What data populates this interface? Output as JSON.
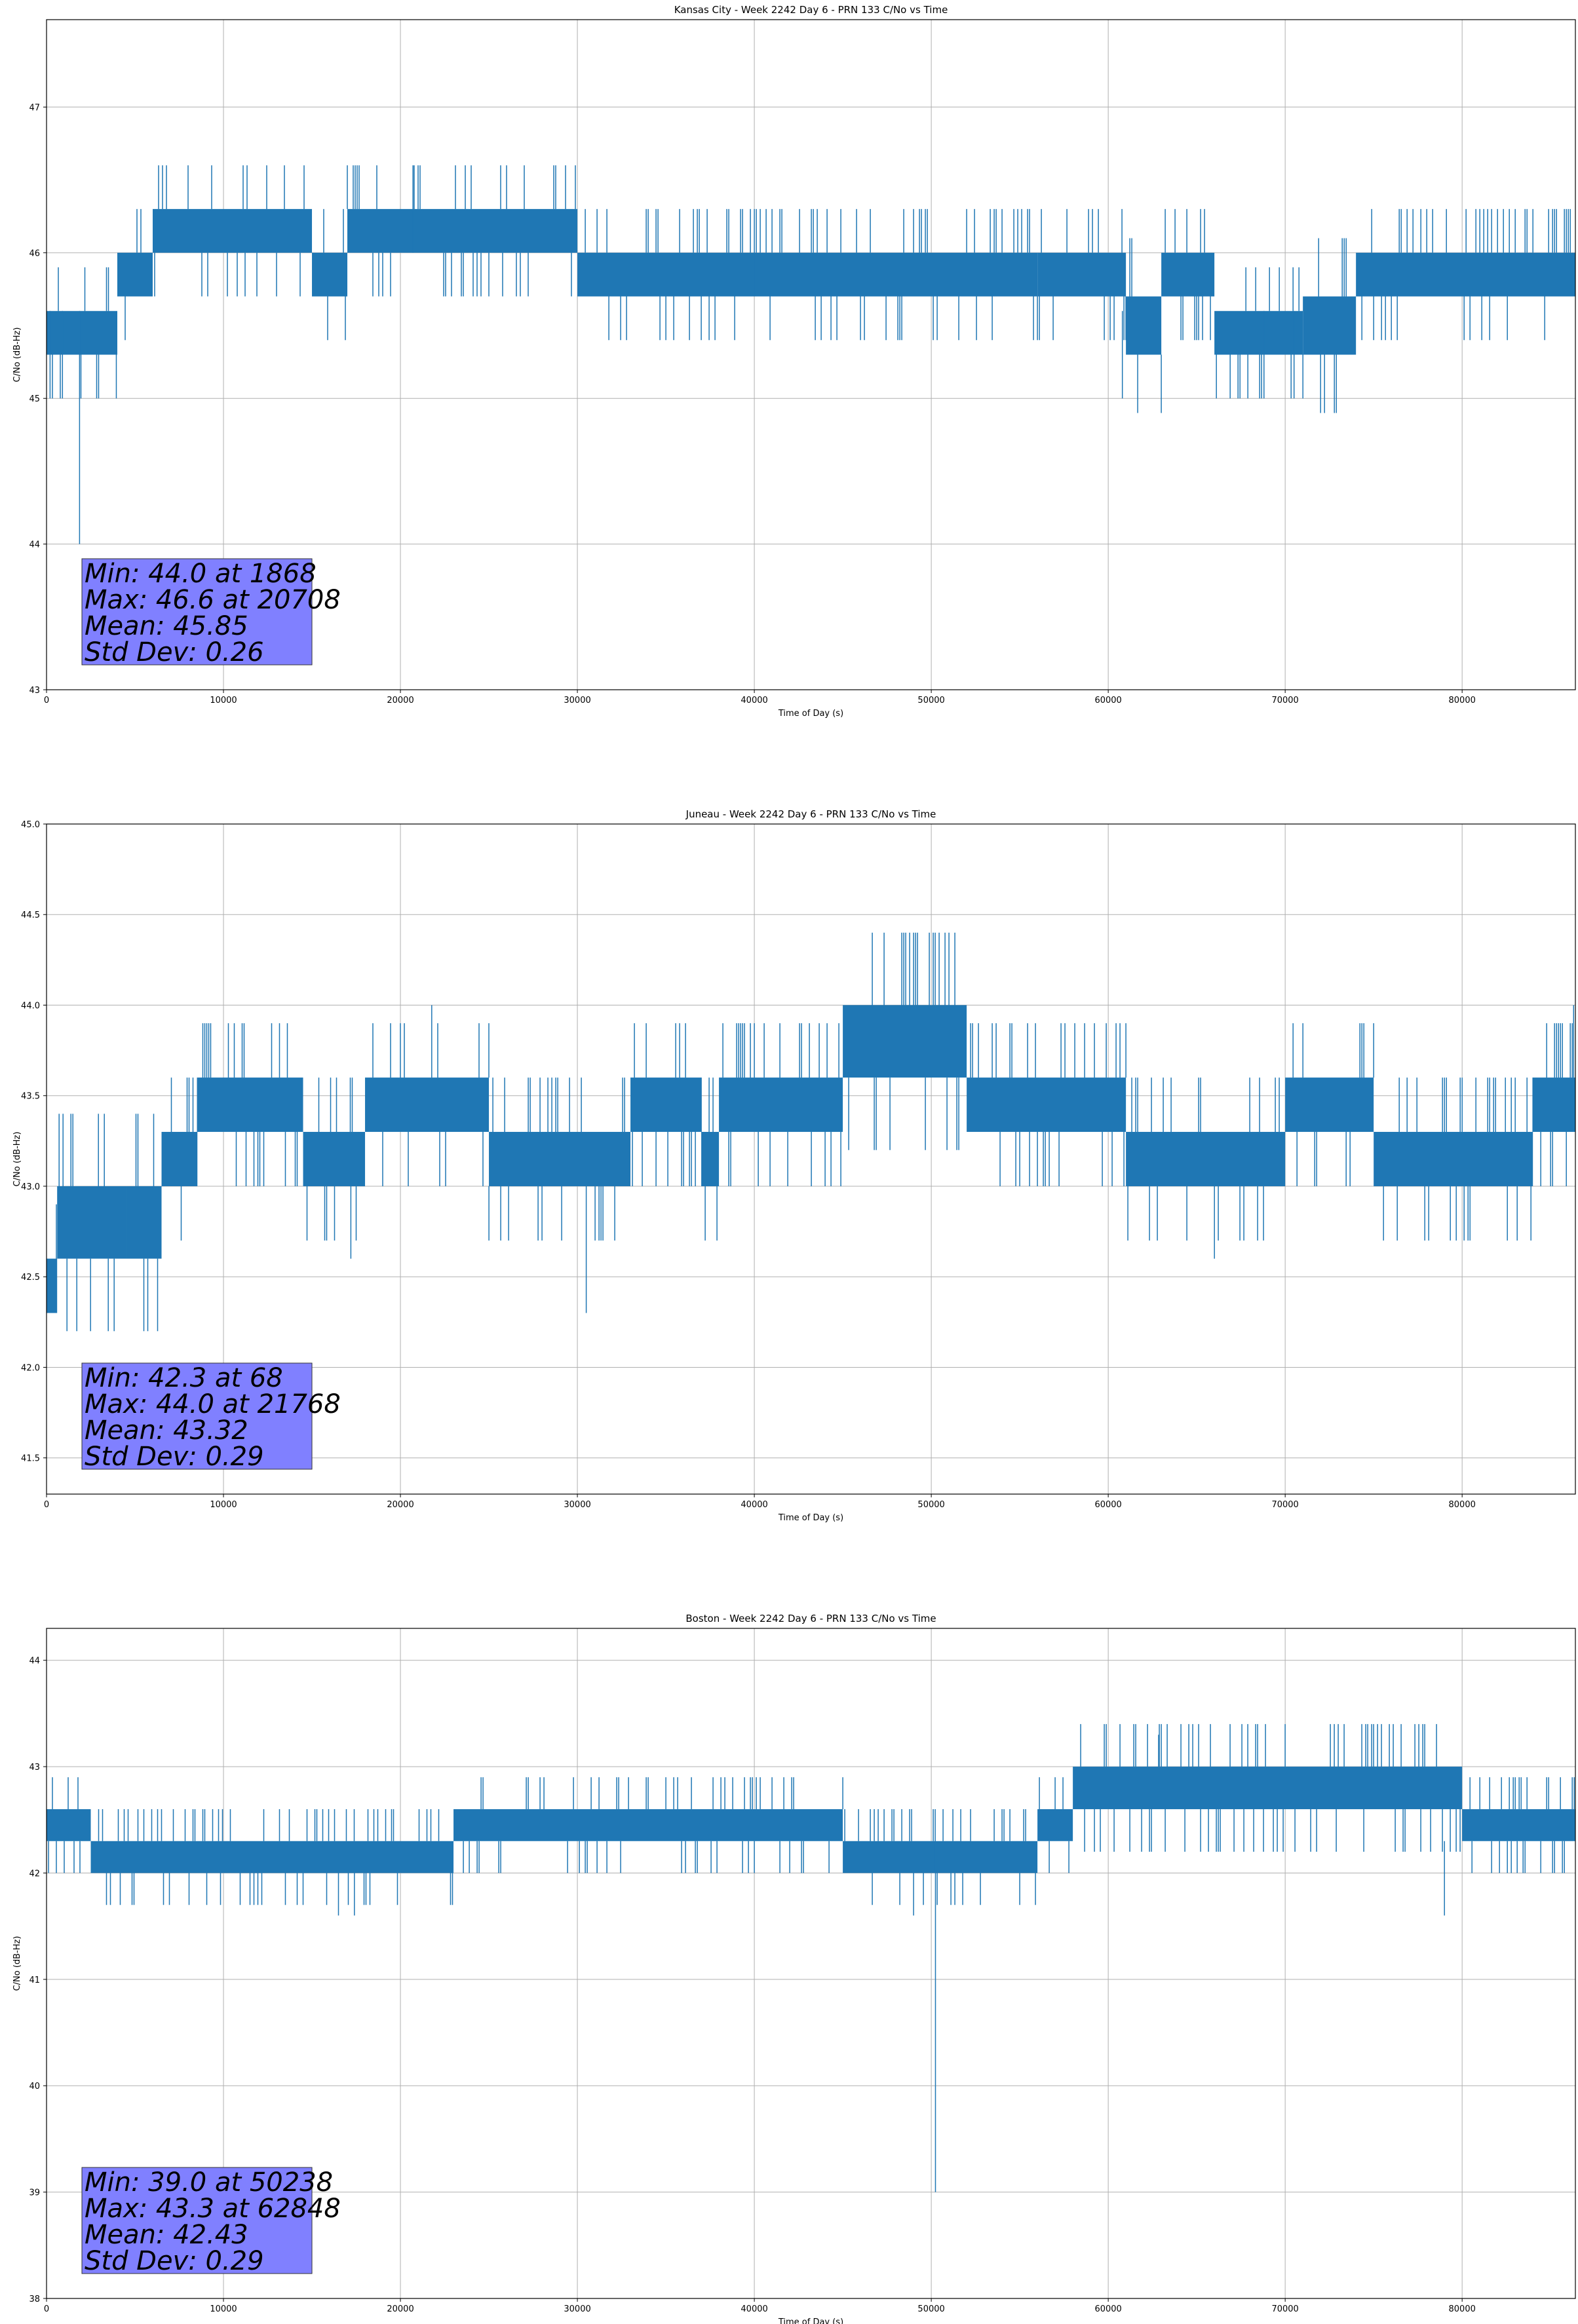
{
  "chart_data": [
    {
      "type": "line",
      "title": "Kansas City - Week 2242 Day 6 - PRN 133 C/No vs Time",
      "xlabel": "Time of Day (s)",
      "ylabel": "C/No (dB-Hz)",
      "xlim": [
        0,
        86400
      ],
      "ylim": [
        43.0,
        47.6
      ],
      "xticks": [
        0,
        10000,
        20000,
        30000,
        40000,
        50000,
        60000,
        70000,
        80000
      ],
      "yticks": [
        43,
        44,
        45,
        46,
        47
      ],
      "ytick_labels": [
        "43",
        "44",
        "45",
        "46",
        "47"
      ],
      "color": "#1f77b4",
      "quantization_step": 0.3,
      "min": {
        "value": 44.0,
        "time": 1868
      },
      "max": {
        "value": 46.6,
        "time": 20708
      },
      "mean": 45.85,
      "std": 0.26,
      "segments": [
        {
          "x": [
            0,
            1500
          ],
          "low": 45.3,
          "high": 45.6
        },
        {
          "x": [
            1500,
            4000
          ],
          "low": 45.3,
          "high": 45.6
        },
        {
          "x": [
            4000,
            6000
          ],
          "low": 45.7,
          "high": 46.0
        },
        {
          "x": [
            6000,
            15000
          ],
          "low": 46.0,
          "high": 46.3
        },
        {
          "x": [
            15000,
            17000
          ],
          "low": 45.7,
          "high": 46.0
        },
        {
          "x": [
            17000,
            30000
          ],
          "low": 46.0,
          "high": 46.3
        },
        {
          "x": [
            30000,
            56000
          ],
          "low": 45.7,
          "high": 46.0
        },
        {
          "x": [
            56000,
            61000
          ],
          "low": 45.7,
          "high": 46.0
        },
        {
          "x": [
            61000,
            63000
          ],
          "low": 45.3,
          "high": 45.7
        },
        {
          "x": [
            63000,
            66000
          ],
          "low": 45.7,
          "high": 46.0
        },
        {
          "x": [
            66000,
            71000
          ],
          "low": 45.3,
          "high": 45.6
        },
        {
          "x": [
            71000,
            74000
          ],
          "low": 45.3,
          "high": 45.7
        },
        {
          "x": [
            74000,
            86400
          ],
          "low": 45.7,
          "high": 46.0
        }
      ],
      "spikes": [
        {
          "x": 1868,
          "low": 44.0,
          "high": 45.6
        },
        {
          "x": 20708,
          "low": 46.0,
          "high": 46.6
        },
        {
          "x": 60800,
          "low": 45.0,
          "high": 45.6
        },
        {
          "x": 68800,
          "low": 45.0,
          "high": 45.6
        },
        {
          "x": 70500,
          "low": 45.0,
          "high": 45.6
        },
        {
          "x": 40000,
          "low": 45.7,
          "high": 46.3
        },
        {
          "x": 200,
          "low": 45.0,
          "high": 45.6
        },
        {
          "x": 900,
          "low": 45.0,
          "high": 45.6
        }
      ],
      "stats_text": [
        "Min: 44.0 at 1868",
        "Max: 46.6 at 20708",
        "Mean: 45.85",
        "Std Dev: 0.26"
      ]
    },
    {
      "type": "line",
      "title": "Juneau - Week 2242 Day 6 - PRN 133 C/No vs Time",
      "xlabel": "Time of Day (s)",
      "ylabel": "C/No (dB-Hz)",
      "xlim": [
        0,
        86400
      ],
      "ylim": [
        41.3,
        45.0
      ],
      "xticks": [
        0,
        10000,
        20000,
        30000,
        40000,
        50000,
        60000,
        70000,
        80000
      ],
      "yticks": [
        41.5,
        42.0,
        42.5,
        43.0,
        43.5,
        44.0,
        44.5,
        45.0
      ],
      "ytick_labels": [
        "41.5",
        "42.0",
        "42.5",
        "43.0",
        "43.5",
        "44.0",
        "44.5",
        "45.0"
      ],
      "color": "#1f77b4",
      "quantization_step": 0.3,
      "min": {
        "value": 42.3,
        "time": 68
      },
      "max": {
        "value": 44.0,
        "time": 21768
      },
      "mean": 43.32,
      "std": 0.29,
      "segments": [
        {
          "x": [
            0,
            600
          ],
          "low": 42.3,
          "high": 42.6
        },
        {
          "x": [
            600,
            4500
          ],
          "low": 42.6,
          "high": 43.0
        },
        {
          "x": [
            4500,
            6500
          ],
          "low": 42.6,
          "high": 43.0
        },
        {
          "x": [
            6500,
            8500
          ],
          "low": 43.0,
          "high": 43.3
        },
        {
          "x": [
            8500,
            14500
          ],
          "low": 43.3,
          "high": 43.6
        },
        {
          "x": [
            14500,
            18000
          ],
          "low": 43.0,
          "high": 43.3
        },
        {
          "x": [
            18000,
            25000
          ],
          "low": 43.3,
          "high": 43.6
        },
        {
          "x": [
            25000,
            33000
          ],
          "low": 43.0,
          "high": 43.3
        },
        {
          "x": [
            33000,
            37000
          ],
          "low": 43.3,
          "high": 43.6
        },
        {
          "x": [
            37000,
            38000
          ],
          "low": 43.0,
          "high": 43.3
        },
        {
          "x": [
            38000,
            45000
          ],
          "low": 43.3,
          "high": 43.6
        },
        {
          "x": [
            45000,
            52000
          ],
          "low": 43.6,
          "high": 44.0
        },
        {
          "x": [
            52000,
            61000
          ],
          "low": 43.3,
          "high": 43.6
        },
        {
          "x": [
            61000,
            70000
          ],
          "low": 43.0,
          "high": 43.3
        },
        {
          "x": [
            70000,
            75000
          ],
          "low": 43.3,
          "high": 43.6
        },
        {
          "x": [
            75000,
            84000
          ],
          "low": 43.0,
          "high": 43.3
        },
        {
          "x": [
            84000,
            86400
          ],
          "low": 43.3,
          "high": 43.6
        }
      ],
      "spikes": [
        {
          "x": 68,
          "low": 42.3,
          "high": 42.6
        },
        {
          "x": 21768,
          "low": 43.6,
          "high": 44.0
        },
        {
          "x": 30500,
          "low": 42.3,
          "high": 43.0
        },
        {
          "x": 17200,
          "low": 42.6,
          "high": 43.0
        },
        {
          "x": 66000,
          "low": 42.6,
          "high": 43.0
        },
        {
          "x": 86300,
          "low": 43.6,
          "high": 44.0
        }
      ],
      "stats_text": [
        "Min: 42.3 at 68",
        "Max: 44.0 at 21768",
        "Mean: 43.32",
        "Std Dev: 0.29"
      ]
    },
    {
      "type": "line",
      "title": "Boston - Week 2242 Day 6 - PRN 133 C/No vs Time",
      "xlabel": "Time of Day (s)",
      "ylabel": "C/No (dB-Hz)",
      "xlim": [
        0,
        86400
      ],
      "ylim": [
        38.0,
        44.3
      ],
      "xticks": [
        0,
        10000,
        20000,
        30000,
        40000,
        50000,
        60000,
        70000,
        80000
      ],
      "yticks": [
        38,
        39,
        40,
        41,
        42,
        43,
        44
      ],
      "ytick_labels": [
        "38",
        "39",
        "40",
        "41",
        "42",
        "43",
        "44"
      ],
      "color": "#1f77b4",
      "quantization_step": 0.3,
      "min": {
        "value": 39.0,
        "time": 50238
      },
      "max": {
        "value": 43.3,
        "time": 62848
      },
      "mean": 42.43,
      "std": 0.29,
      "segments": [
        {
          "x": [
            0,
            2500
          ],
          "low": 42.3,
          "high": 42.6
        },
        {
          "x": [
            2500,
            23000
          ],
          "low": 42.0,
          "high": 42.3
        },
        {
          "x": [
            23000,
            45000
          ],
          "low": 42.3,
          "high": 42.6
        },
        {
          "x": [
            45000,
            56000
          ],
          "low": 42.0,
          "high": 42.3
        },
        {
          "x": [
            56000,
            58000
          ],
          "low": 42.3,
          "high": 42.6
        },
        {
          "x": [
            58000,
            80000
          ],
          "low": 42.6,
          "high": 43.0
        },
        {
          "x": [
            80000,
            86400
          ],
          "low": 42.3,
          "high": 42.6
        }
      ],
      "spikes": [
        {
          "x": 50238,
          "low": 39.0,
          "high": 42.3
        },
        {
          "x": 62848,
          "low": 43.0,
          "high": 43.3
        },
        {
          "x": 16500,
          "low": 41.6,
          "high": 42.0
        },
        {
          "x": 17400,
          "low": 41.6,
          "high": 42.0
        },
        {
          "x": 49000,
          "low": 41.6,
          "high": 42.0
        },
        {
          "x": 79000,
          "low": 41.6,
          "high": 42.3
        }
      ],
      "stats_text": [
        "Min: 39.0 at 50238",
        "Max: 43.3 at 62848",
        "Mean: 42.43",
        "Std Dev: 0.29"
      ]
    }
  ]
}
